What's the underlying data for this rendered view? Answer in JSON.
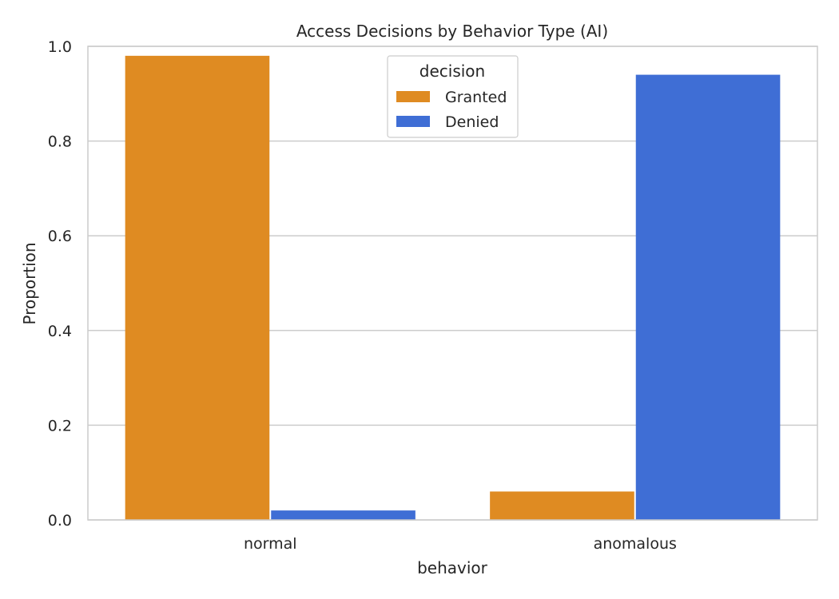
{
  "chart_data": {
    "type": "bar",
    "title": "Access Decisions by Behavior Type (AI)",
    "xlabel": "behavior",
    "ylabel": "Proportion",
    "categories": [
      "normal",
      "anomalous"
    ],
    "series": [
      {
        "name": "Granted",
        "values": [
          0.98,
          0.06
        ],
        "color": "#df8b22"
      },
      {
        "name": "Denied",
        "values": [
          0.02,
          0.94
        ],
        "color": "#3f6ed5"
      }
    ],
    "ylim": [
      0,
      1.0
    ],
    "yticks": [
      "0.0",
      "0.2",
      "0.4",
      "0.6",
      "0.8",
      "1.0"
    ],
    "grid": true,
    "legend": {
      "title": "decision",
      "placement": "top-center"
    }
  }
}
